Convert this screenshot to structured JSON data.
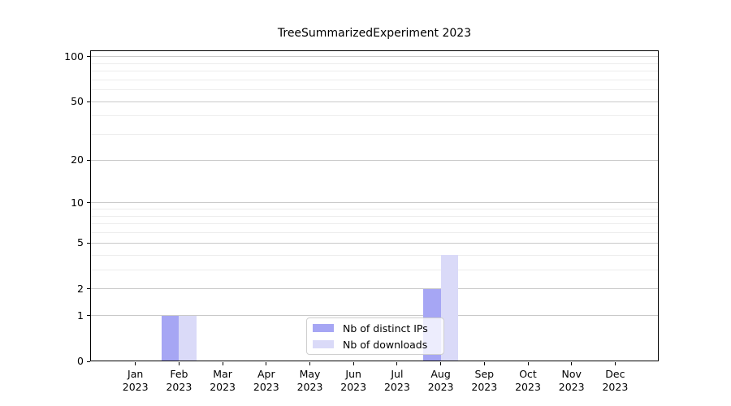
{
  "title": "TreeSummarizedExperiment 2023",
  "legend": {
    "items": [
      {
        "label": "Nb of distinct IPs",
        "color": "#a6a6f4"
      },
      {
        "label": "Nb of downloads",
        "color": "#dadaf8"
      }
    ]
  },
  "colors": {
    "ips_bar": "#a6a6f4",
    "downloads_bar": "#dadaf8",
    "grid_major": "#c9c9c9",
    "grid_minor": "#ededed",
    "axis": "#000000"
  },
  "chart_data": {
    "type": "bar",
    "title": "TreeSummarizedExperiment 2023",
    "categories": [
      "Jan",
      "Feb",
      "Mar",
      "Apr",
      "May",
      "Jun",
      "Jul",
      "Aug",
      "Sep",
      "Oct",
      "Nov",
      "Dec"
    ],
    "category_year": "2023",
    "series": [
      {
        "name": "Nb of distinct IPs",
        "color": "#a6a6f4",
        "values": [
          0,
          1,
          0,
          0,
          0,
          0,
          0,
          2,
          0,
          0,
          0,
          0
        ]
      },
      {
        "name": "Nb of downloads",
        "color": "#dadaf8",
        "values": [
          0,
          1,
          0,
          0,
          0,
          0,
          0,
          4,
          0,
          0,
          0,
          0
        ]
      }
    ],
    "yscale": "log1p",
    "yticks": [
      0,
      1,
      2,
      5,
      10,
      20,
      50,
      100
    ],
    "minor_gridlines": [
      3,
      4,
      6,
      7,
      8,
      9,
      30,
      40,
      60,
      70,
      80,
      90
    ],
    "ylim": [
      0,
      110
    ],
    "grid": true,
    "legend_position": "lower center-right"
  }
}
